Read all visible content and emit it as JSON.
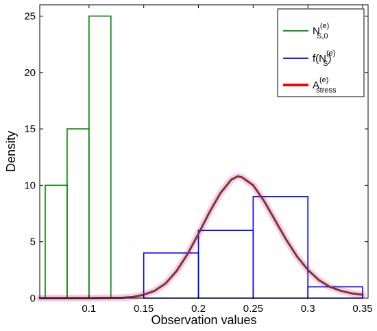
{
  "chart_data": {
    "type": "bar",
    "xlabel": "Observation values",
    "ylabel": "Density",
    "xlim": [
      0.055,
      0.355
    ],
    "ylim": [
      0,
      26
    ],
    "xticks": [
      "0.1",
      "0.15",
      "0.2",
      "0.25",
      "0.3",
      "0.35"
    ],
    "xtick_values": [
      0.1,
      0.15,
      0.2,
      0.25,
      0.3,
      0.35
    ],
    "yticks": [
      "0",
      "5",
      "10",
      "15",
      "20",
      "25"
    ],
    "ytick_values": [
      0,
      5,
      10,
      15,
      20,
      25
    ],
    "grid": false,
    "legend_position": "top-right",
    "series": [
      {
        "kind": "histogram",
        "color": "#008000",
        "legend": {
          "base": "N",
          "sup": "(e)",
          "sub": "S,0"
        },
        "bins": [
          {
            "x0": 0.06,
            "x1": 0.08,
            "value": 10
          },
          {
            "x0": 0.08,
            "x1": 0.1,
            "value": 15
          },
          {
            "x0": 0.1,
            "x1": 0.12,
            "value": 25
          }
        ]
      },
      {
        "kind": "histogram",
        "color": "#0000ff",
        "legend": {
          "base": "f(N",
          "sup": "(e)",
          "sub": "S",
          "tail": ")"
        },
        "bins": [
          {
            "x0": 0.15,
            "x1": 0.2,
            "value": 4
          },
          {
            "x0": 0.2,
            "x1": 0.25,
            "value": 6
          },
          {
            "x0": 0.25,
            "x1": 0.3,
            "value": 9
          },
          {
            "x0": 0.3,
            "x1": 0.35,
            "value": 1
          }
        ]
      },
      {
        "kind": "curve",
        "color": "#ff0000",
        "display_color": "#7a3b1e",
        "legend": {
          "base": "A",
          "sup": "(e)",
          "sub": "stress"
        },
        "points": [
          [
            0.055,
            0.0
          ],
          [
            0.1,
            0.0
          ],
          [
            0.13,
            0.03
          ],
          [
            0.14,
            0.1
          ],
          [
            0.15,
            0.3
          ],
          [
            0.16,
            0.65
          ],
          [
            0.17,
            1.3
          ],
          [
            0.18,
            2.4
          ],
          [
            0.19,
            3.9
          ],
          [
            0.2,
            5.7
          ],
          [
            0.21,
            7.6
          ],
          [
            0.22,
            9.3
          ],
          [
            0.23,
            10.5
          ],
          [
            0.236,
            10.8
          ],
          [
            0.24,
            10.7
          ],
          [
            0.25,
            10.0
          ],
          [
            0.26,
            8.6
          ],
          [
            0.27,
            6.9
          ],
          [
            0.28,
            5.2
          ],
          [
            0.29,
            3.7
          ],
          [
            0.3,
            2.5
          ],
          [
            0.31,
            1.6
          ],
          [
            0.32,
            1.0
          ],
          [
            0.33,
            0.65
          ],
          [
            0.34,
            0.42
          ],
          [
            0.35,
            0.3
          ]
        ]
      }
    ]
  }
}
